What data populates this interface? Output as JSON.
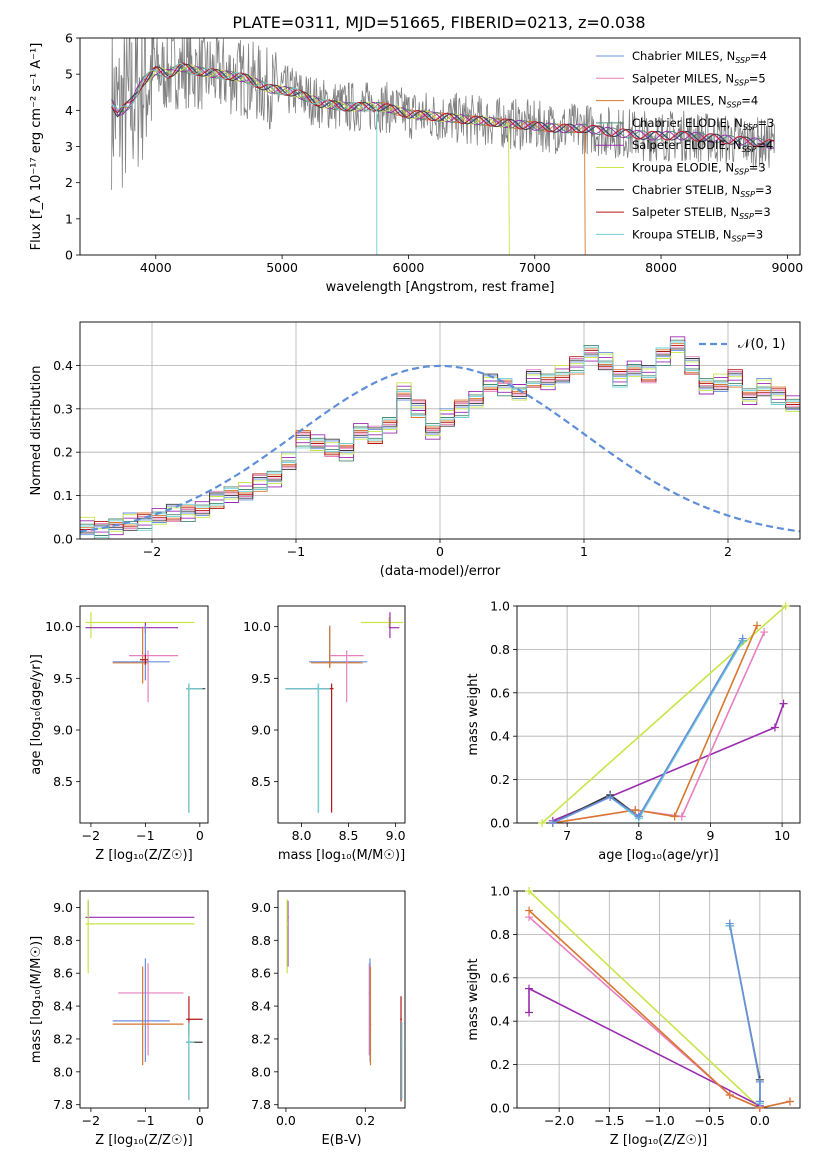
{
  "figure_title": "PLATE=0311, MJD=51665, FIBERID=0213, z=0.038",
  "colors": {
    "Chabrier MILES": "#6a8fdc",
    "Salpeter MILES": "#e87fbf",
    "Kroupa MILES": "#d8772e",
    "Chabrier ELODIE": "#4a8a72",
    "Salpeter ELODIE": "#9a2cb0",
    "Kroupa ELODIE": "#c6e64a",
    "Chabrier STELIB": "#3a3a3a",
    "Salpeter STELIB": "#b01818",
    "Kroupa STELIB": "#6fd0d8",
    "data": "#808080",
    "gauss": "#5f8fd8",
    "grid": "#b0b0b0"
  },
  "chart_data": [
    {
      "id": "spectrum",
      "type": "line",
      "title": "PLATE=0311, MJD=51665, FIBERID=0213, z=0.038",
      "xlabel": "wavelength [Angstrom, rest frame]",
      "ylabel": "Flux [f_λ 10⁻¹⁷ erg cm⁻² s⁻¹ A⁻¹]",
      "xlim": [
        3400,
        9100
      ],
      "ylim": [
        0,
        6
      ],
      "xticks": [
        4000,
        5000,
        6000,
        7000,
        8000,
        9000
      ],
      "yticks": [
        0,
        1,
        2,
        3,
        4,
        5,
        6
      ],
      "grid": false,
      "legend_position": "top-right",
      "legend": [
        {
          "label": "Chabrier MILES, N",
          "sub": "SSP",
          "suffix": "=4"
        },
        {
          "label": "Salpeter MILES, N",
          "sub": "SSP",
          "suffix": "=5"
        },
        {
          "label": "Kroupa MILES, N",
          "sub": "SSP",
          "suffix": "=4"
        },
        {
          "label": "Chabrier ELODIE, N",
          "sub": "SSP",
          "suffix": "=3"
        },
        {
          "label": "Salpeter ELODIE, N",
          "sub": "SSP",
          "suffix": "=4"
        },
        {
          "label": "Kroupa ELODIE, N",
          "sub": "SSP",
          "suffix": "=3"
        },
        {
          "label": "Chabrier STELIB, N",
          "sub": "SSP",
          "suffix": "=3"
        },
        {
          "label": "Salpeter STELIB, N",
          "sub": "SSP",
          "suffix": "=3"
        },
        {
          "label": "Kroupa STELIB, N",
          "sub": "SSP",
          "suffix": "=3"
        }
      ],
      "model_continuum": {
        "x": [
          3650,
          3700,
          3800,
          3900,
          4000,
          4100,
          4200,
          4300,
          4500,
          4700,
          4900,
          5100,
          5300,
          5500,
          5800,
          6000,
          6300,
          6600,
          6900,
          7200,
          7400,
          7600,
          7900,
          8200,
          8500,
          8800,
          8900
        ],
        "y": [
          4.2,
          3.9,
          4.2,
          4.8,
          5.1,
          5.0,
          5.2,
          5.1,
          5.0,
          4.9,
          4.6,
          4.5,
          4.2,
          4.1,
          4.1,
          3.9,
          3.8,
          3.7,
          3.6,
          3.5,
          3.5,
          3.4,
          3.3,
          3.3,
          3.2,
          3.1,
          3.05
        ]
      },
      "model_cutoffs": [
        {
          "model": "Kroupa ELODIE",
          "x_start": 3900,
          "x_end": 6800
        },
        {
          "model": "Kroupa STELIB",
          "x_start": 3650,
          "x_end": 5750
        },
        {
          "model": "Kroupa MILES",
          "x_start": 3650,
          "x_end": 7400
        }
      ]
    },
    {
      "id": "residuals",
      "type": "histogram",
      "xlabel": "(data-model)/error",
      "ylabel": "Normed distribution",
      "xlim": [
        -2.5,
        2.5
      ],
      "ylim": [
        0,
        0.5
      ],
      "xticks": [
        -2,
        -1,
        0,
        1,
        2
      ],
      "yticks": [
        0.0,
        0.1,
        0.2,
        0.3,
        0.4
      ],
      "grid": true,
      "legend_position": "top-right",
      "legend": [
        {
          "label": "𝒩(0, 1)",
          "style": "dashed"
        }
      ],
      "bin_width": 0.1,
      "bin_start": -2.5,
      "base_values": [
        0.03,
        0.02,
        0.03,
        0.04,
        0.04,
        0.05,
        0.06,
        0.06,
        0.07,
        0.09,
        0.1,
        0.11,
        0.13,
        0.14,
        0.18,
        0.23,
        0.22,
        0.21,
        0.2,
        0.25,
        0.24,
        0.26,
        0.34,
        0.3,
        0.25,
        0.28,
        0.3,
        0.32,
        0.36,
        0.35,
        0.34,
        0.37,
        0.36,
        0.38,
        0.4,
        0.43,
        0.41,
        0.37,
        0.39,
        0.38,
        0.42,
        0.45,
        0.4,
        0.35,
        0.36,
        0.37,
        0.33,
        0.35,
        0.33,
        0.31,
        0.32,
        0.33,
        0.28,
        0.31,
        0.32,
        0.27,
        0.24,
        0.21,
        0.21,
        0.2,
        0.18,
        0.17,
        0.17,
        0.15,
        0.16,
        0.13,
        0.12,
        0.11,
        0.1,
        0.09,
        0.09,
        0.08,
        0.07,
        0.06,
        0.06,
        0.06,
        0.05,
        0.05,
        0.04,
        0.03
      ]
    },
    {
      "id": "age_vs_Z",
      "type": "scatter",
      "xlabel": "Z [log₁₀(Z/Z☉)]",
      "ylabel": "age  [log₁₀(age/yr)]",
      "xlim": [
        -2.2,
        0.15
      ],
      "ylim": [
        8.1,
        10.2
      ],
      "xticks": [
        -2,
        -1,
        0
      ],
      "yticks": [
        8.5,
        9.0,
        9.5,
        10.0
      ],
      "grid": false,
      "points": [
        {
          "model": "Kroupa ELODIE",
          "x": -2.0,
          "xerr": [
            0.1,
            1.9
          ],
          "y": 10.04,
          "yerr": [
            0.15,
            0.1
          ]
        },
        {
          "model": "Salpeter ELODIE",
          "x": -1.0,
          "xerr": [
            1.1,
            0.6
          ],
          "y": 9.99,
          "yerr": [
            0.05,
            0.05
          ]
        },
        {
          "model": "Kroupa MILES",
          "x": -1.05,
          "xerr": [
            0.55,
            0.1
          ],
          "y": 9.65,
          "yerr": [
            0.2,
            0.35
          ]
        },
        {
          "model": "Salpeter MILES",
          "x": -0.95,
          "xerr": [
            0.35,
            0.55
          ],
          "y": 9.72,
          "yerr": [
            0.45,
            0.05
          ]
        },
        {
          "model": "Chabrier MILES",
          "x": -1.0,
          "xerr": [
            0.6,
            0.45
          ],
          "y": 9.66,
          "yerr": [
            0.18,
            0.35
          ]
        },
        {
          "model": "Salpeter STELIB",
          "x": -1.0,
          "xerr": [
            0.1,
            0.05
          ],
          "y": 9.68,
          "yerr": [
            0.05,
            0.05
          ]
        },
        {
          "model": "Chabrier STELIB",
          "x": -0.2,
          "xerr": [
            0.05,
            0.3
          ],
          "y": 9.4,
          "yerr": [
            1.2,
            0.05
          ]
        },
        {
          "model": "Kroupa STELIB",
          "x": -0.2,
          "xerr": [
            0.05,
            0.25
          ],
          "y": 9.4,
          "yerr": [
            1.2,
            0.05
          ]
        }
      ]
    },
    {
      "id": "age_vs_mass",
      "type": "scatter",
      "xlabel": "mass [log₁₀(M/M☉)]",
      "ylabel": "",
      "xlim": [
        7.75,
        9.1
      ],
      "ylim": [
        8.1,
        10.2
      ],
      "xticks": [
        8.0,
        8.5,
        9.0
      ],
      "yticks": [
        8.5,
        9.0,
        9.5,
        10.0
      ],
      "grid": false,
      "points": [
        {
          "model": "Kroupa ELODIE",
          "x": 8.93,
          "xerr": [
            0.3,
            0.15
          ],
          "y": 10.04,
          "yerr": [
            0.05,
            0.05
          ]
        },
        {
          "model": "Salpeter ELODIE",
          "x": 8.94,
          "xerr": [
            0.01,
            0.1
          ],
          "y": 9.99,
          "yerr": [
            0.1,
            0.15
          ]
        },
        {
          "model": "Chabrier MILES",
          "x": 8.3,
          "xerr": [
            0.22,
            0.4
          ],
          "y": 9.66,
          "yerr": [
            0.05,
            0.35
          ]
        },
        {
          "model": "Kroupa MILES",
          "x": 8.3,
          "xerr": [
            0.2,
            0.35
          ],
          "y": 9.65,
          "yerr": [
            0.05,
            0.35
          ]
        },
        {
          "model": "Salpeter MILES",
          "x": 8.48,
          "xerr": [
            0.18,
            0.18
          ],
          "y": 9.72,
          "yerr": [
            0.45,
            0.05
          ]
        },
        {
          "model": "Salpeter STELIB",
          "x": 8.32,
          "xerr": [
            0.02,
            0.02
          ],
          "y": 9.4,
          "yerr": [
            1.2,
            0.05
          ]
        },
        {
          "model": "Chabrier STELIB",
          "x": 8.18,
          "xerr": [
            0.35,
            0.12
          ],
          "y": 9.4,
          "yerr": [
            1.2,
            0.05
          ]
        },
        {
          "model": "Kroupa STELIB",
          "x": 8.18,
          "xerr": [
            0.35,
            0.12
          ],
          "y": 9.4,
          "yerr": [
            1.2,
            0.05
          ]
        }
      ]
    },
    {
      "id": "massweight_vs_age",
      "type": "line",
      "xlabel": "age  [log₁₀(age/yr)]",
      "ylabel": "mass weight",
      "xlim": [
        6.3,
        10.25
      ],
      "ylim": [
        0,
        1
      ],
      "xticks": [
        7,
        8,
        9,
        10
      ],
      "yticks": [
        0.0,
        0.2,
        0.4,
        0.6,
        0.8,
        1.0
      ],
      "grid": true,
      "series": [
        {
          "model": "Kroupa ELODIE",
          "x": [
            6.65,
            10.05
          ],
          "y": [
            0.0,
            1.0
          ]
        },
        {
          "model": "Salpeter ELODIE",
          "x": [
            6.8,
            9.9,
            10.02
          ],
          "y": [
            0.01,
            0.44,
            0.55
          ]
        },
        {
          "model": "Salpeter MILES",
          "x": [
            6.8,
            7.95,
            8.6,
            9.75
          ],
          "y": [
            0.0,
            0.06,
            0.03,
            0.88
          ]
        },
        {
          "model": "Kroupa MILES",
          "x": [
            6.8,
            7.95,
            8.5,
            9.65
          ],
          "y": [
            0.0,
            0.06,
            0.03,
            0.91
          ]
        },
        {
          "model": "Chabrier STELIB",
          "x": [
            6.8,
            7.6,
            8.0,
            9.45
          ],
          "y": [
            0.0,
            0.13,
            0.03,
            0.84
          ]
        },
        {
          "model": "Kroupa STELIB",
          "x": [
            6.8,
            7.6,
            8.0,
            9.45
          ],
          "y": [
            0.0,
            0.12,
            0.02,
            0.84
          ]
        },
        {
          "model": "Chabrier MILES",
          "x": [
            6.8,
            7.6,
            8.0,
            9.45
          ],
          "y": [
            0.0,
            0.12,
            0.03,
            0.85
          ]
        }
      ]
    },
    {
      "id": "mass_vs_Z",
      "type": "scatter",
      "xlabel": "Z [log₁₀(Z/Z☉)]",
      "ylabel": "mass [log₁₀(M/M☉)]",
      "xlim": [
        -2.2,
        0.15
      ],
      "ylim": [
        7.78,
        9.1
      ],
      "xticks": [
        -2,
        -1,
        0
      ],
      "yticks": [
        7.8,
        8.0,
        8.2,
        8.4,
        8.6,
        8.8,
        9.0
      ],
      "grid": false,
      "points": [
        {
          "model": "Salpeter ELODIE",
          "x": -2.05,
          "xerr": [
            0.05,
            1.95
          ],
          "y": 8.94,
          "yerr": [
            0.01,
            0.1
          ]
        },
        {
          "model": "Kroupa ELODIE",
          "x": -2.05,
          "xerr": [
            0.05,
            1.95
          ],
          "y": 8.9,
          "yerr": [
            0.3,
            0.15
          ]
        },
        {
          "model": "Salpeter MILES",
          "x": -0.95,
          "xerr": [
            0.55,
            0.65
          ],
          "y": 8.48,
          "yerr": [
            0.38,
            0.18
          ]
        },
        {
          "model": "Chabrier MILES",
          "x": -1.0,
          "xerr": [
            0.6,
            0.45
          ],
          "y": 8.31,
          "yerr": [
            0.25,
            0.38
          ]
        },
        {
          "model": "Kroupa MILES",
          "x": -1.05,
          "xerr": [
            0.55,
            0.75
          ],
          "y": 8.29,
          "yerr": [
            0.25,
            0.35
          ]
        },
        {
          "model": "Salpeter STELIB",
          "x": -0.2,
          "xerr": [
            0.05,
            0.25
          ],
          "y": 8.32,
          "yerr": [
            0.1,
            0.14
          ]
        },
        {
          "model": "Chabrier STELIB",
          "x": -0.2,
          "xerr": [
            0.05,
            0.25
          ],
          "y": 8.18,
          "yerr": [
            0.35,
            0.12
          ]
        },
        {
          "model": "Kroupa STELIB",
          "x": -0.2,
          "xerr": [
            0.05,
            0.1
          ],
          "y": 8.18,
          "yerr": [
            0.35,
            0.12
          ]
        }
      ]
    },
    {
      "id": "mass_vs_ebv",
      "type": "scatter",
      "xlabel": "E(B-V)",
      "ylabel": "",
      "xlim": [
        -0.02,
        0.3
      ],
      "ylim": [
        7.78,
        9.1
      ],
      "xticks": [
        0.0,
        0.2
      ],
      "yticks": [
        7.8,
        8.0,
        8.2,
        8.4,
        8.6,
        8.8,
        9.0
      ],
      "grid": false,
      "points": [
        {
          "model": "Salpeter ELODIE",
          "x": 0.005,
          "xerr": [
            0.002,
            0.002
          ],
          "y": 8.94,
          "yerr": [
            0.3,
            0.1
          ]
        },
        {
          "model": "Kroupa ELODIE",
          "x": 0.003,
          "xerr": [
            0.002,
            0.002
          ],
          "y": 8.9,
          "yerr": [
            0.3,
            0.15
          ]
        },
        {
          "model": "Salpeter MILES",
          "x": 0.21,
          "xerr": [
            0.002,
            0.002
          ],
          "y": 8.48,
          "yerr": [
            0.38,
            0.18
          ]
        },
        {
          "model": "Chabrier MILES",
          "x": 0.212,
          "xerr": [
            0.002,
            0.002
          ],
          "y": 8.31,
          "yerr": [
            0.25,
            0.38
          ]
        },
        {
          "model": "Kroupa MILES",
          "x": 0.213,
          "xerr": [
            0.002,
            0.002
          ],
          "y": 8.29,
          "yerr": [
            0.25,
            0.35
          ]
        },
        {
          "model": "Salpeter STELIB",
          "x": 0.29,
          "xerr": [
            0.002,
            0.002
          ],
          "y": 8.32,
          "yerr": [
            0.5,
            0.14
          ]
        },
        {
          "model": "Chabrier STELIB",
          "x": 0.291,
          "xerr": [
            0.002,
            0.002
          ],
          "y": 8.18,
          "yerr": [
            0.35,
            0.12
          ]
        },
        {
          "model": "Kroupa STELIB",
          "x": 0.292,
          "xerr": [
            0.002,
            0.002
          ],
          "y": 8.18,
          "yerr": [
            0.35,
            0.12
          ]
        }
      ]
    },
    {
      "id": "massweight_vs_Z",
      "type": "line",
      "xlabel": "Z [log₁₀(Z/Z☉)]",
      "ylabel": "mass weight",
      "xlim": [
        -2.42,
        0.4
      ],
      "ylim": [
        0,
        1
      ],
      "xticks": [
        -2.0,
        -1.5,
        -1.0,
        -0.5,
        0.0
      ],
      "yticks": [
        0.0,
        0.2,
        0.4,
        0.6,
        0.8,
        1.0
      ],
      "grid": true,
      "series": [
        {
          "model": "Kroupa ELODIE",
          "x": [
            -2.3,
            0.0
          ],
          "y": [
            1.0,
            0.0
          ]
        },
        {
          "model": "Salpeter ELODIE",
          "x": [
            -2.3,
            -2.3,
            0.0
          ],
          "y": [
            0.44,
            0.55,
            0.01
          ]
        },
        {
          "model": "Salpeter MILES",
          "x": [
            -2.3,
            -0.3,
            0.0,
            0.3
          ],
          "y": [
            0.88,
            0.06,
            0.0,
            0.03
          ]
        },
        {
          "model": "Kroupa MILES",
          "x": [
            -2.3,
            -0.3,
            0.0,
            0.3
          ],
          "y": [
            0.91,
            0.06,
            0.0,
            0.03
          ]
        },
        {
          "model": "Chabrier STELIB",
          "x": [
            -0.3,
            0.0,
            0.0
          ],
          "y": [
            0.84,
            0.13,
            0.03
          ]
        },
        {
          "model": "Kroupa STELIB",
          "x": [
            -0.3,
            0.0,
            0.0
          ],
          "y": [
            0.84,
            0.12,
            0.02
          ]
        },
        {
          "model": "Chabrier MILES",
          "x": [
            -0.3,
            0.0,
            0.0
          ],
          "y": [
            0.85,
            0.12,
            0.03
          ]
        }
      ]
    }
  ]
}
